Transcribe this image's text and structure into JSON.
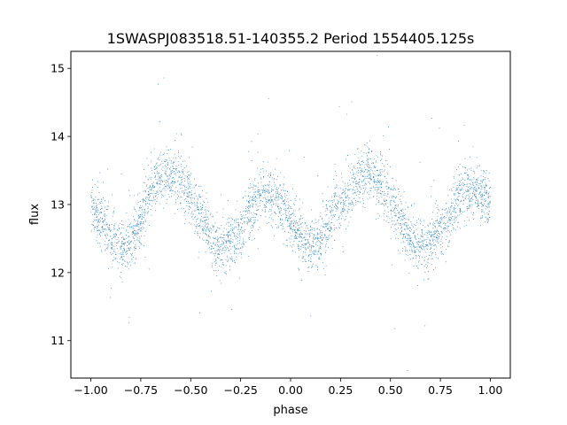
{
  "chart_data": {
    "type": "scatter",
    "title": "1SWASPJ083518.51-140355.2 Period 1554405.125s",
    "xlabel": "phase",
    "ylabel": "flux",
    "xlim": [
      -1.1,
      1.1
    ],
    "ylim": [
      10.45,
      15.25
    ],
    "x_ticks": [
      -1.0,
      -0.75,
      -0.5,
      -0.25,
      0.0,
      0.25,
      0.5,
      0.75,
      1.0
    ],
    "x_tick_labels": [
      "−1.00",
      "−0.75",
      "−0.50",
      "−0.25",
      "0.00",
      "0.25",
      "0.50",
      "0.75",
      "1.00"
    ],
    "y_ticks": [
      11,
      12,
      13,
      14,
      15
    ],
    "y_tick_labels": [
      "11",
      "12",
      "13",
      "14",
      "15"
    ],
    "grid": false,
    "legend": "none",
    "marker_color": "#1f77b4",
    "series": [
      {
        "phase_range": [
          -1.0,
          1.0
        ],
        "trend": {
          "x": [
            -1.0,
            -0.95,
            -0.9,
            -0.85,
            -0.8,
            -0.75,
            -0.7,
            -0.65,
            -0.6,
            -0.55,
            -0.5,
            -0.45,
            -0.4,
            -0.35,
            -0.3,
            -0.25,
            -0.2,
            -0.15,
            -0.1,
            -0.05,
            0.0,
            0.05,
            0.1,
            0.15,
            0.2,
            0.25,
            0.3,
            0.35,
            0.4,
            0.45,
            0.5,
            0.55,
            0.6,
            0.65,
            0.7,
            0.75,
            0.8,
            0.85,
            0.9,
            0.95,
            1.0
          ],
          "y": [
            13.0,
            12.8,
            12.5,
            12.35,
            12.4,
            12.8,
            13.2,
            13.45,
            13.45,
            13.4,
            13.1,
            12.8,
            12.5,
            12.35,
            12.45,
            12.6,
            12.95,
            13.15,
            13.1,
            13.05,
            12.8,
            12.5,
            12.35,
            12.5,
            12.8,
            13.0,
            13.2,
            13.4,
            13.45,
            13.3,
            13.1,
            12.8,
            12.5,
            12.4,
            12.45,
            12.6,
            12.9,
            13.1,
            13.2,
            13.15,
            13.0
          ]
        }
      }
    ]
  }
}
